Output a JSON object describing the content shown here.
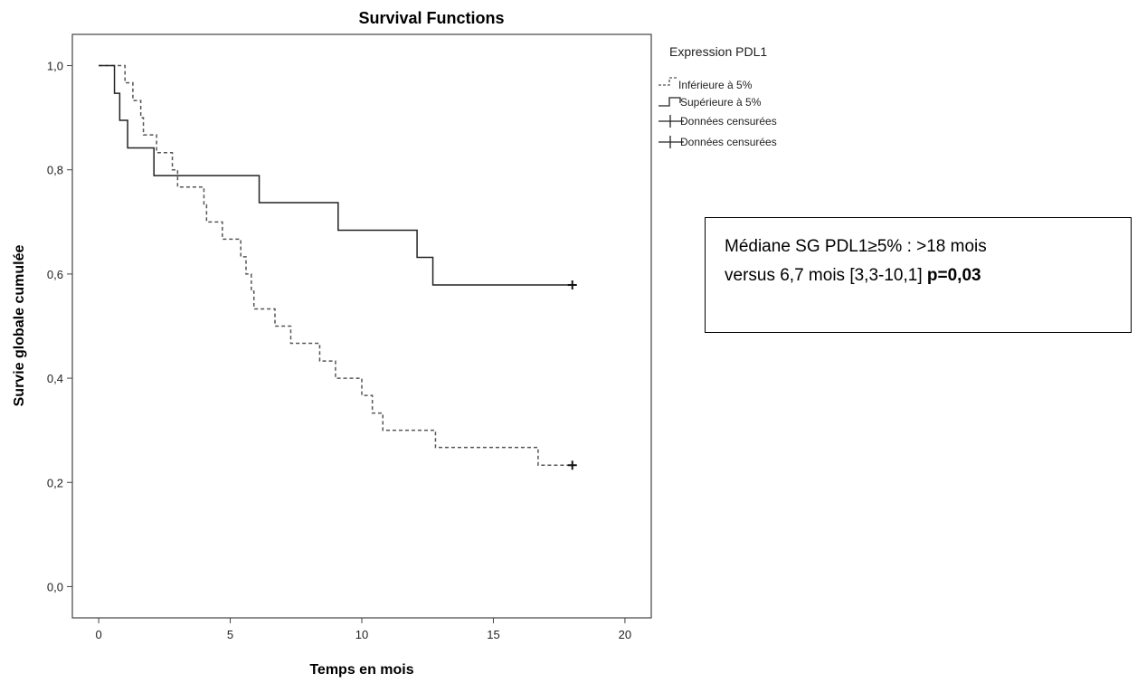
{
  "chart_data": {
    "type": "line",
    "subtype": "kaplan-meier step",
    "title": "Survival Functions",
    "xlabel": "Temps en mois",
    "ylabel": "Survie globale cumulée",
    "xlim": [
      -1,
      21
    ],
    "ylim": [
      -0.06,
      1.06
    ],
    "x_ticks": [
      0,
      5,
      10,
      15,
      20
    ],
    "x_tick_labels": [
      "0",
      "5",
      "10",
      "15",
      "20"
    ],
    "y_ticks": [
      0,
      0.2,
      0.4,
      0.6,
      0.8,
      1.0
    ],
    "y_tick_labels": [
      "0,0",
      "0,2",
      "0,4",
      "0,6",
      "0,8",
      "1,0"
    ],
    "grid": false,
    "legend_title": "Expression PDL1",
    "legend_position": "top-right",
    "legend": [
      "Inférieure à 5%",
      "Supérieure à 5%",
      "Données censurées",
      "Données censurées"
    ],
    "series": [
      {
        "name": "Inférieure à 5%",
        "line_style": "dashed",
        "color": "#555555",
        "steps": [
          [
            0,
            1.0
          ],
          [
            1.0,
            0.967
          ],
          [
            1.3,
            0.933
          ],
          [
            1.6,
            0.9
          ],
          [
            1.7,
            0.867
          ],
          [
            2.2,
            0.833
          ],
          [
            2.8,
            0.8
          ],
          [
            3.0,
            0.767
          ],
          [
            4.0,
            0.733
          ],
          [
            4.1,
            0.7
          ],
          [
            4.7,
            0.667
          ],
          [
            5.4,
            0.633
          ],
          [
            5.6,
            0.6
          ],
          [
            5.8,
            0.567
          ],
          [
            5.9,
            0.533
          ],
          [
            6.7,
            0.5
          ],
          [
            7.3,
            0.467
          ],
          [
            8.4,
            0.433
          ],
          [
            9.0,
            0.4
          ],
          [
            10.0,
            0.367
          ],
          [
            10.4,
            0.333
          ],
          [
            10.8,
            0.3
          ],
          [
            12.8,
            0.267
          ],
          [
            16.7,
            0.233
          ],
          [
            18.0,
            0.233
          ]
        ],
        "censored": [
          [
            18.0,
            0.233
          ]
        ]
      },
      {
        "name": "Supérieure à 5%",
        "line_style": "solid",
        "color": "#222222",
        "steps": [
          [
            0,
            1.0
          ],
          [
            0.6,
            0.947
          ],
          [
            0.8,
            0.895
          ],
          [
            1.1,
            0.842
          ],
          [
            2.1,
            0.789
          ],
          [
            6.1,
            0.737
          ],
          [
            9.1,
            0.684
          ],
          [
            12.1,
            0.632
          ],
          [
            12.7,
            0.579
          ],
          [
            18.0,
            0.579
          ]
        ],
        "censored": [
          [
            18.0,
            0.579
          ]
        ]
      }
    ]
  },
  "annotation": {
    "line1": "Médiane SG PDL1≥5% : >18 mois",
    "line2_text": "versus 6,7 mois [3,3-10,1] ",
    "line2_bold": "p=0,03"
  }
}
